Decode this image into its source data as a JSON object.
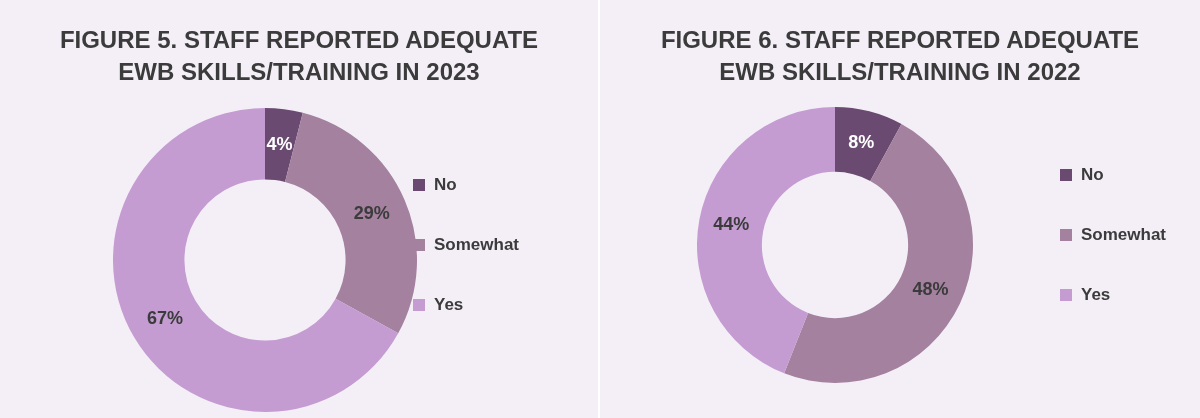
{
  "chart_data": [
    {
      "type": "donut",
      "title": "FIGURE 5. STAFF REPORTED ADEQUATE EWB SKILLS/TRAINING IN 2023",
      "categories": [
        "No",
        "Somewhat",
        "Yes"
      ],
      "values": [
        4,
        29,
        67
      ],
      "value_labels": [
        "4%",
        "29%",
        "67%"
      ],
      "colors": [
        "#6b4a72",
        "#a3819f",
        "#c49cd2"
      ],
      "legend": "right"
    },
    {
      "type": "donut",
      "title": "FIGURE 6. STAFF REPORTED ADEQUATE EWB SKILLS/TRAINING IN 2022",
      "categories": [
        "No",
        "Somewhat",
        "Yes"
      ],
      "values": [
        8,
        48,
        44
      ],
      "value_labels": [
        "8%",
        "48%",
        "44%"
      ],
      "colors": [
        "#6b4a72",
        "#a3819f",
        "#c49cd2"
      ],
      "legend": "right"
    }
  ]
}
